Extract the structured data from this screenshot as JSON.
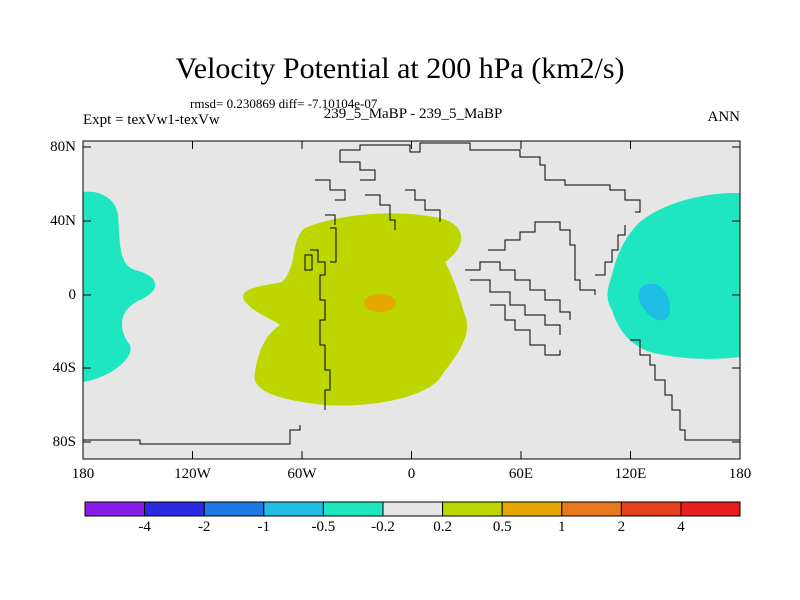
{
  "map": {
    "title": "Velocity Potential at 200 hPa (km2/s)",
    "stats": "rmsd= 0.230869 diff= -7.10104e-07",
    "left_label": "Expt = texVw1-texVw",
    "center_label": "239_5_MaBP - 239_5_MaBP",
    "right_label": "ANN",
    "lat_labels": [
      "80N",
      "40N",
      "0",
      "40S",
      "80S"
    ],
    "lon_labels": [
      "180",
      "120W",
      "60W",
      "0",
      "60E",
      "120E",
      "180"
    ],
    "background_color": "#e6e6e6",
    "fill_colors": {
      "positive_0.2_0.5": "#bdd600",
      "positive_0.5_1": "#e6a800",
      "negative_0.5_0.2": "#1ee6c0",
      "negative_1_0.5": "#1ec2ea"
    }
  },
  "colorbar": {
    "labels": [
      "-4",
      "-2",
      "-1",
      "-0.5",
      "-0.2",
      "0.2",
      "0.5",
      "1",
      "2",
      "4"
    ],
    "colors": [
      "#8a1ee6",
      "#2a2ae0",
      "#1e78e6",
      "#1ebee6",
      "#1ee6c0",
      "#e6e6e6",
      "#bdd600",
      "#e6a800",
      "#e6781e",
      "#e6421e",
      "#e61e1e"
    ]
  }
}
